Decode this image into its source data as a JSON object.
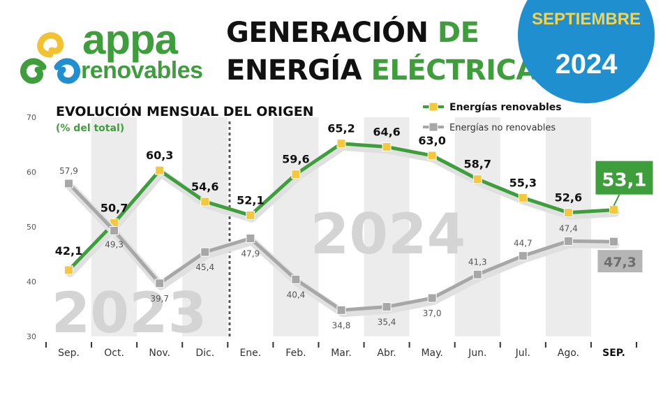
{
  "header": {
    "brand": "appa",
    "brand_sub": "renovables",
    "title_line1_a": "GENERACIÓN",
    "title_line1_b": "DE",
    "title_line2_a": "ENERGÍA",
    "title_line2_b": "ELÉCTRICA",
    "badge_month": "SEPTIEMBRE",
    "badge_year": "2024"
  },
  "colors": {
    "green": "#3f9e3c",
    "gray": "#a7a7a7",
    "marker_yellow": "#f5c83c",
    "badge_blue": "#1f8fd0"
  },
  "chart_data": {
    "type": "line",
    "title": "EVOLUCIÓN MENSUAL DEL ORIGEN",
    "subtitle": "(% del total)",
    "categories": [
      "Sep.",
      "Oct.",
      "Nov.",
      "Dic.",
      "Ene.",
      "Feb.",
      "Mar.",
      "Abr.",
      "May.",
      "Jun.",
      "Jul.",
      "Ago.",
      "SEP."
    ],
    "ylim": [
      30,
      70
    ],
    "yticks": [
      30,
      40,
      50,
      60,
      70
    ],
    "year_labels": [
      "2023",
      "2024"
    ],
    "legend_position": "top-right",
    "series": [
      {
        "name": "Energías renovables",
        "values": [
          42.1,
          50.7,
          60.3,
          54.6,
          52.1,
          59.6,
          65.2,
          64.6,
          63.0,
          58.7,
          55.3,
          52.6,
          53.1
        ],
        "labels": [
          "42,1",
          "50,7",
          "60,3",
          "54,6",
          "52,1",
          "59,6",
          "65,2",
          "64,6",
          "63,0",
          "58,7",
          "55,3",
          "52,6",
          "53,1"
        ]
      },
      {
        "name": "Energías no renovables",
        "values": [
          57.9,
          49.3,
          39.7,
          45.4,
          47.9,
          40.4,
          34.8,
          35.4,
          37.0,
          41.3,
          44.7,
          47.4,
          47.3
        ],
        "labels": [
          "57,9",
          "49,3",
          "39,7",
          "45,4",
          "47,9",
          "40,4",
          "34,8",
          "35,4",
          "37,0",
          "41,3",
          "44,7",
          "47,4",
          "47,3"
        ]
      }
    ]
  }
}
